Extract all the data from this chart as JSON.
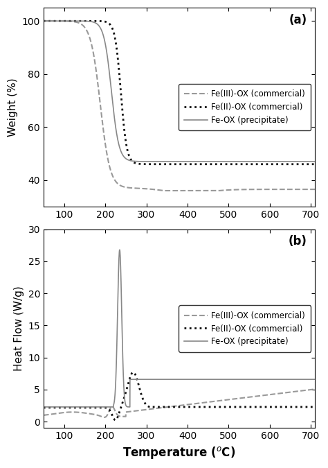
{
  "fig_width": 4.74,
  "fig_height": 6.75,
  "dpi": 100,
  "background_color": "#ffffff",
  "tga_ylabel": "Weight (%)",
  "tga_ylim": [
    30,
    105
  ],
  "tga_yticks": [
    40,
    60,
    80,
    100
  ],
  "tga_label": "(a)",
  "dsc_ylabel": "Heat Flow (W/g)",
  "dsc_ylim": [
    -1,
    30
  ],
  "dsc_yticks": [
    0,
    5,
    10,
    15,
    20,
    25,
    30
  ],
  "dsc_label": "(b)",
  "xlabel": "Temperature ($^{o}$C)",
  "xlim": [
    50,
    710
  ],
  "xticks": [
    100,
    200,
    300,
    400,
    500,
    600,
    700
  ],
  "legend_fe3_label": "Fe(III)-OX (commercial)",
  "legend_fe2_label": "Fe(II)-OX (commercial)",
  "legend_feppt_label": "Fe-OX (precipitate)",
  "fe3_color": "#999999",
  "fe2_color": "#111111",
  "feppt_color": "#888888",
  "fe3_linestyle": "--",
  "fe2_linestyle": ":",
  "feppt_linestyle": "-",
  "fe3_lw": 1.5,
  "fe2_lw": 2.0,
  "feppt_lw": 1.2
}
